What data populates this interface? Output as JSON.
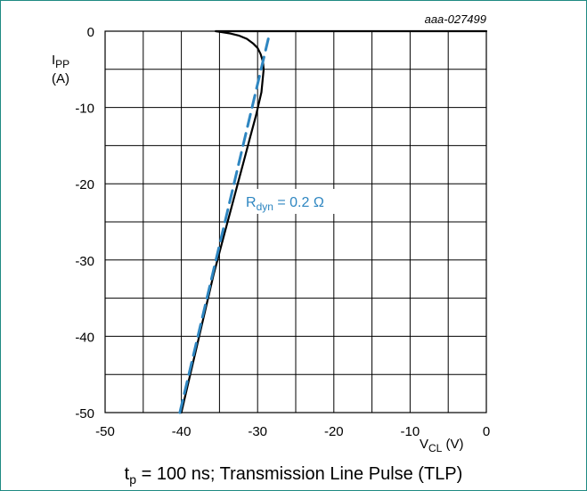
{
  "figure_id": "aaa-027499",
  "caption": {
    "t": "t",
    "p": "p",
    "rest": " = 100 ns; Transmission Line Pulse (TLP)"
  },
  "colors": {
    "frame": "#1f8a82",
    "grid": "#000000",
    "curve": "#000000",
    "fit": "#2e86c1"
  },
  "chart_data": {
    "type": "line",
    "x_label": {
      "main": "V",
      "sub": "CL",
      "unit": " (V)"
    },
    "y_label": {
      "main": "I",
      "sub": "PP",
      "unit": "(A)"
    },
    "xlim": [
      -50,
      0
    ],
    "ylim": [
      -50,
      0
    ],
    "x_ticks": [
      "-50",
      "-40",
      "-30",
      "-20",
      "-10",
      "0"
    ],
    "y_ticks": [
      "0",
      "-10",
      "-20",
      "-30",
      "-40",
      "-50"
    ],
    "grid": true,
    "annotation": {
      "main": "R",
      "sub": "dyn",
      "rest": " = 0.2 Ω"
    },
    "series": [
      {
        "style": "solid",
        "x": [
          -40.0,
          -39.3,
          -38.6,
          -37.9,
          -37.2,
          -36.5,
          -35.8,
          -35.0,
          -34.2,
          -33.4,
          -32.6,
          -31.8,
          -31.0,
          -30.2,
          -29.5,
          -29.2,
          -29.3,
          -29.6,
          -30.0,
          -30.6,
          -31.4,
          -32.4,
          -33.6,
          -34.8,
          -35.5,
          -30.0,
          -20.0,
          -10.0,
          0.0
        ],
        "y": [
          -50.0,
          -47.0,
          -44.0,
          -41.0,
          -38.0,
          -35.0,
          -32.0,
          -29.0,
          -26.0,
          -23.0,
          -20.0,
          -17.0,
          -14.0,
          -11.0,
          -8.0,
          -5.0,
          -4.0,
          -3.0,
          -2.2,
          -1.6,
          -1.0,
          -0.6,
          -0.3,
          -0.1,
          0.0,
          0.0,
          0.0,
          0.0,
          0.0
        ]
      },
      {
        "style": "dashed",
        "x": [
          -40.2,
          -28.6
        ],
        "y": [
          -50.0,
          -1.0
        ]
      }
    ]
  }
}
